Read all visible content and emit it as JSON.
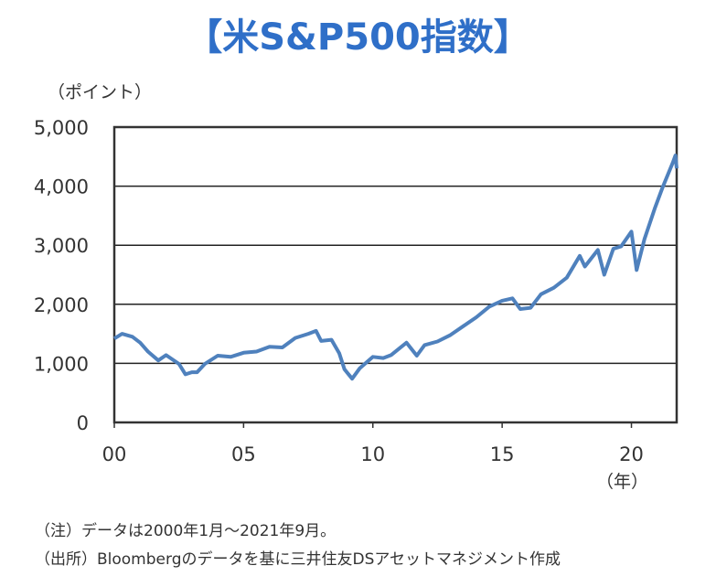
{
  "title": "【米S&P500指数】",
  "chart_data": {
    "type": "line",
    "title": "【米S&P500指数】",
    "ylabel": "（ポイント）",
    "xlabel": "（年）",
    "ylim": [
      0,
      5000
    ],
    "xlim": [
      2000,
      2021.75
    ],
    "yticks": [
      0,
      1000,
      2000,
      3000,
      4000,
      5000
    ],
    "ytick_labels": [
      "0",
      "1,000",
      "2,000",
      "3,000",
      "4,000",
      "5,000"
    ],
    "xticks": [
      2000,
      2005,
      2010,
      2015,
      2020
    ],
    "xtick_labels": [
      "00",
      "05",
      "10",
      "15",
      "20"
    ],
    "grid": "horizontal",
    "color": "#4f81bd",
    "series": [
      {
        "name": "S&P500",
        "x": [
          2000.0,
          2000.3,
          2000.7,
          2001.0,
          2001.3,
          2001.7,
          2002.0,
          2002.5,
          2002.75,
          2003.0,
          2003.2,
          2003.5,
          2004.0,
          2004.5,
          2005.0,
          2005.5,
          2006.0,
          2006.5,
          2007.0,
          2007.5,
          2007.8,
          2008.0,
          2008.4,
          2008.7,
          2008.9,
          2009.2,
          2009.5,
          2010.0,
          2010.4,
          2010.7,
          2011.3,
          2011.7,
          2012.0,
          2012.5,
          2013.0,
          2013.5,
          2014.0,
          2014.5,
          2015.0,
          2015.4,
          2015.7,
          2016.1,
          2016.5,
          2017.0,
          2017.5,
          2018.0,
          2018.2,
          2018.7,
          2018.95,
          2019.3,
          2019.6,
          2020.0,
          2020.2,
          2020.5,
          2020.9,
          2021.2,
          2021.6,
          2021.7,
          2021.75
        ],
        "values": [
          1420,
          1500,
          1450,
          1350,
          1200,
          1050,
          1140,
          990,
          815,
          850,
          850,
          990,
          1130,
          1110,
          1180,
          1200,
          1280,
          1270,
          1430,
          1500,
          1550,
          1380,
          1400,
          1170,
          900,
          740,
          920,
          1110,
          1090,
          1140,
          1350,
          1130,
          1310,
          1370,
          1480,
          1630,
          1780,
          1960,
          2060,
          2100,
          1920,
          1940,
          2170,
          2280,
          2450,
          2820,
          2640,
          2920,
          2500,
          2940,
          2980,
          3230,
          2580,
          3100,
          3620,
          3970,
          4400,
          4520,
          4300
        ]
      }
    ]
  },
  "notes": [
    "（注）データは2000年1月～2021年9月。",
    "（出所）Bloombergのデータを基に三井住友DSアセットマネジメント作成"
  ]
}
